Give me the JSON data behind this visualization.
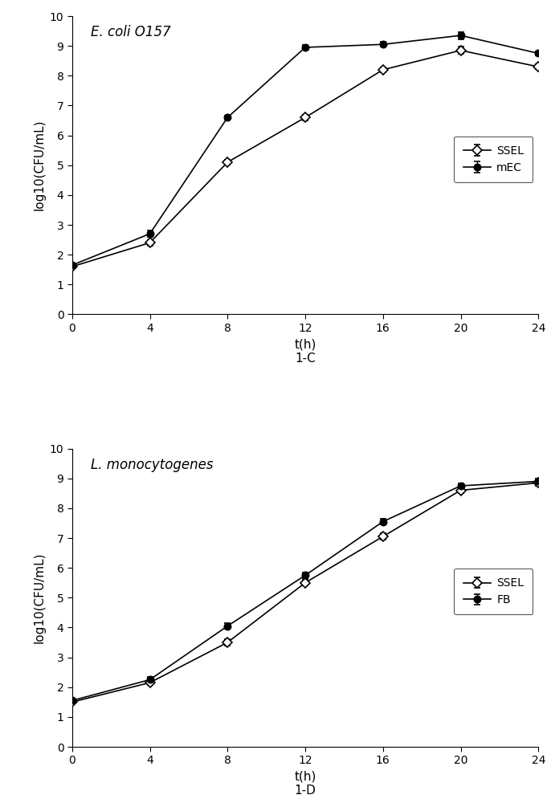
{
  "panel_top": {
    "title": "E. coli O157",
    "label": "1-C",
    "xlabel": "t(h)",
    "ylabel": "log10(CFU/mL)",
    "xlim": [
      0,
      24
    ],
    "ylim": [
      0,
      10
    ],
    "xticks": [
      0,
      4,
      8,
      12,
      16,
      20,
      24
    ],
    "yticks": [
      0,
      1,
      2,
      3,
      4,
      5,
      6,
      7,
      8,
      9,
      10
    ],
    "series": [
      {
        "label": "SSEL",
        "x": [
          0,
          4,
          8,
          12,
          16,
          20,
          24
        ],
        "y": [
          1.6,
          2.4,
          5.1,
          6.6,
          8.2,
          8.85,
          8.3
        ],
        "yerr": [
          0.05,
          0.1,
          0.08,
          0.1,
          0.08,
          0.12,
          0.08
        ],
        "marker": "D",
        "marker_face": "white",
        "marker_edge": "black",
        "color": "black",
        "linestyle": "-"
      },
      {
        "label": "mEC",
        "x": [
          0,
          4,
          8,
          12,
          16,
          20,
          24
        ],
        "y": [
          1.65,
          2.7,
          6.6,
          8.95,
          9.05,
          9.35,
          8.75
        ],
        "yerr": [
          0.05,
          0.1,
          0.07,
          0.07,
          0.08,
          0.12,
          0.07
        ],
        "marker": "o",
        "marker_face": "black",
        "marker_edge": "black",
        "color": "black",
        "linestyle": "-"
      }
    ]
  },
  "panel_bottom": {
    "title": "L. monocytogenes",
    "label": "1-D",
    "xlabel": "t(h)",
    "ylabel": "log10(CFU/mL)",
    "xlim": [
      0,
      24
    ],
    "ylim": [
      0,
      10
    ],
    "xticks": [
      0,
      4,
      8,
      12,
      16,
      20,
      24
    ],
    "yticks": [
      0,
      1,
      2,
      3,
      4,
      5,
      6,
      7,
      8,
      9,
      10
    ],
    "series": [
      {
        "label": "SSEL",
        "x": [
          0,
          4,
          8,
          12,
          16,
          20,
          24
        ],
        "y": [
          1.5,
          2.15,
          3.5,
          5.5,
          7.05,
          8.6,
          8.85
        ],
        "yerr": [
          0.05,
          0.08,
          0.1,
          0.1,
          0.1,
          0.1,
          0.1
        ],
        "marker": "D",
        "marker_face": "white",
        "marker_edge": "black",
        "color": "black",
        "linestyle": "-"
      },
      {
        "label": "FB",
        "x": [
          0,
          4,
          8,
          12,
          16,
          20,
          24
        ],
        "y": [
          1.55,
          2.25,
          4.05,
          5.75,
          7.55,
          8.75,
          8.9
        ],
        "yerr": [
          0.05,
          0.08,
          0.1,
          0.1,
          0.1,
          0.08,
          0.08
        ],
        "marker": "o",
        "marker_face": "black",
        "marker_edge": "black",
        "color": "black",
        "linestyle": "-"
      }
    ]
  },
  "background_color": "white",
  "markersize": 6,
  "linewidth": 1.2,
  "capsize": 3,
  "elinewidth": 1.0,
  "legend_fontsize": 10,
  "title_fontsize": 12,
  "axis_label_fontsize": 11,
  "tick_fontsize": 10
}
